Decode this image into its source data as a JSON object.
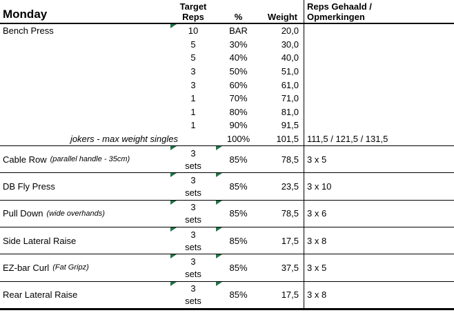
{
  "colors": {
    "indicator_green": "#217346",
    "border": "#000000",
    "background": "#ffffff"
  },
  "header": {
    "day": "Monday",
    "target_line1": "Target",
    "target_line2": "Reps",
    "percent": "%",
    "weight": "Weight",
    "notes_line1": "Reps Gehaald /",
    "notes_line2": "Opmerkingen"
  },
  "bench": {
    "exercise": "Bench Press",
    "rows": [
      {
        "reps": "10",
        "pct": "BAR",
        "weight": "20,0"
      },
      {
        "reps": "5",
        "pct": "30%",
        "weight": "30,0"
      },
      {
        "reps": "5",
        "pct": "40%",
        "weight": "40,0"
      },
      {
        "reps": "3",
        "pct": "50%",
        "weight": "51,0"
      },
      {
        "reps": "3",
        "pct": "60%",
        "weight": "61,0"
      },
      {
        "reps": "1",
        "pct": "70%",
        "weight": "71,0"
      },
      {
        "reps": "1",
        "pct": "80%",
        "weight": "81,0"
      },
      {
        "reps": "1",
        "pct": "90%",
        "weight": "91,5"
      }
    ],
    "jokers": {
      "label": "jokers - max weight singles",
      "pct": "100%",
      "weight": "101,5",
      "notes": "111,5 / 121,5 / 131,5"
    }
  },
  "exercises": [
    {
      "name": "Cable Row",
      "detail": "(parallel handle - 35cm)",
      "sets_count": "3",
      "sets_word": "sets",
      "pct": "85%",
      "weight": "78,5",
      "notes": "3 x 5"
    },
    {
      "name": "DB Fly Press",
      "detail": "",
      "sets_count": "3",
      "sets_word": "sets",
      "pct": "85%",
      "weight": "23,5",
      "notes": "3 x 10"
    },
    {
      "name": "Pull Down",
      "detail": "(wide overhands)",
      "sets_count": "3",
      "sets_word": "sets",
      "pct": "85%",
      "weight": "78,5",
      "notes": "3 x 6"
    },
    {
      "name": "Side Lateral Raise",
      "detail": "",
      "sets_count": "3",
      "sets_word": "sets",
      "pct": "85%",
      "weight": "17,5",
      "notes": "3 x 8"
    },
    {
      "name": "EZ-bar Curl",
      "detail": "(Fat Gripz)",
      "sets_count": "3",
      "sets_word": "sets",
      "pct": "85%",
      "weight": "37,5",
      "notes": "3 x 5"
    },
    {
      "name": "Rear Lateral Raise",
      "detail": "",
      "sets_count": "3",
      "sets_word": "sets",
      "pct": "85%",
      "weight": "17,5",
      "notes": "3 x 8"
    }
  ]
}
